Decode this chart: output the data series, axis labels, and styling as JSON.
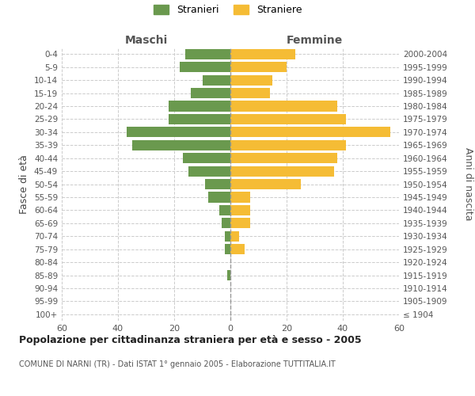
{
  "age_groups": [
    "100+",
    "95-99",
    "90-94",
    "85-89",
    "80-84",
    "75-79",
    "70-74",
    "65-69",
    "60-64",
    "55-59",
    "50-54",
    "45-49",
    "40-44",
    "35-39",
    "30-34",
    "25-29",
    "20-24",
    "15-19",
    "10-14",
    "5-9",
    "0-4"
  ],
  "birth_years": [
    "≤ 1904",
    "1905-1909",
    "1910-1914",
    "1915-1919",
    "1920-1924",
    "1925-1929",
    "1930-1934",
    "1935-1939",
    "1940-1944",
    "1945-1949",
    "1950-1954",
    "1955-1959",
    "1960-1964",
    "1965-1969",
    "1970-1974",
    "1975-1979",
    "1980-1984",
    "1985-1989",
    "1990-1994",
    "1995-1999",
    "2000-2004"
  ],
  "maschi": [
    0,
    0,
    0,
    1,
    0,
    2,
    2,
    3,
    4,
    8,
    9,
    15,
    17,
    35,
    37,
    22,
    22,
    14,
    10,
    18,
    16
  ],
  "femmine": [
    0,
    0,
    0,
    0,
    0,
    5,
    3,
    7,
    7,
    7,
    25,
    37,
    38,
    41,
    57,
    41,
    38,
    14,
    15,
    20,
    23
  ],
  "maschi_color": "#6a994e",
  "femmine_color": "#f5bc35",
  "background_color": "#ffffff",
  "grid_color": "#cccccc",
  "title": "Popolazione per cittadinanza straniera per età e sesso - 2005",
  "subtitle": "COMUNE DI NARNI (TR) - Dati ISTAT 1° gennaio 2005 - Elaborazione TUTTITALIA.IT",
  "ylabel_left": "Fasce di età",
  "ylabel_right": "Anni di nascita",
  "header_left": "Maschi",
  "header_right": "Femmine",
  "legend_stranieri": "Stranieri",
  "legend_straniere": "Straniere",
  "xlim": 60,
  "figsize": [
    6.0,
    5.0
  ],
  "dpi": 100
}
